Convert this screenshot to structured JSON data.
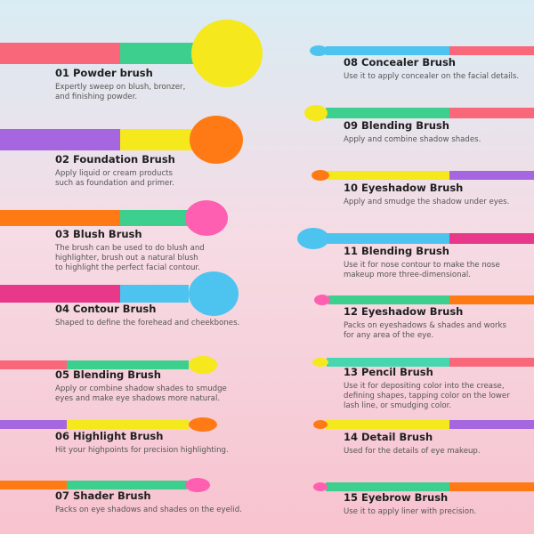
{
  "brushes": [
    {
      "title": "01 Powder brush",
      "description": [
        "Expertly sweep on blush, bronzer,",
        "and finishing powder."
      ]
    },
    {
      "title": "02 Foundation Brush",
      "description": [
        "Apply liquid or cream products",
        "such as foundation and primer."
      ]
    },
    {
      "title": "03 Blush Brush",
      "description": [
        "The brush can be used to do blush and",
        "highlighter, brush out a natural blush",
        "to highlight the perfect facial contour."
      ]
    },
    {
      "title": "04 Contour Brush",
      "description": [
        "Shaped to define the forehead and cheekbones."
      ]
    },
    {
      "title": "05 Blending Brush",
      "description": [
        "Apply or combine shadow shades to smudge",
        "eyes and make eye shadows more natural."
      ]
    },
    {
      "title": "06 Highlight Brush",
      "description": [
        "Hit your highpoints for precision highlighting."
      ]
    },
    {
      "title": "07 Shader Brush",
      "description": [
        "Packs on eye shadows and shades on the eyelid."
      ]
    },
    {
      "title": "08 Concealer Brush",
      "description": [
        "Use it to apply concealer on the facial details."
      ]
    },
    {
      "title": "09 Blending Brush",
      "description": [
        "Apply and combine shadow shades."
      ]
    },
    {
      "title": "10 Eyeshadow Brush",
      "description": [
        "Apply and smudge the shadow under eyes."
      ]
    },
    {
      "title": "11 Blending Brush",
      "description": [
        "Use it for nose contour to make the nose",
        "makeup more three-dimensional."
      ]
    },
    {
      "title": "12 Eyeshadow Brush",
      "description": [
        "Packs on eyeshadows & shades and works",
        "for any area of the eye."
      ]
    },
    {
      "title": "13 Pencil Brush",
      "description": [
        "Use it for depositing color into the crease,",
        "defining shapes, tapping color on the lower",
        "lash line, or smudging color."
      ]
    },
    {
      "title": "14 Detail Brush",
      "description": [
        "Used for the details of eye makeup."
      ]
    },
    {
      "title": "15 Eyebrow Brush",
      "description": [
        "Use it to apply liner with precision."
      ]
    }
  ]
}
